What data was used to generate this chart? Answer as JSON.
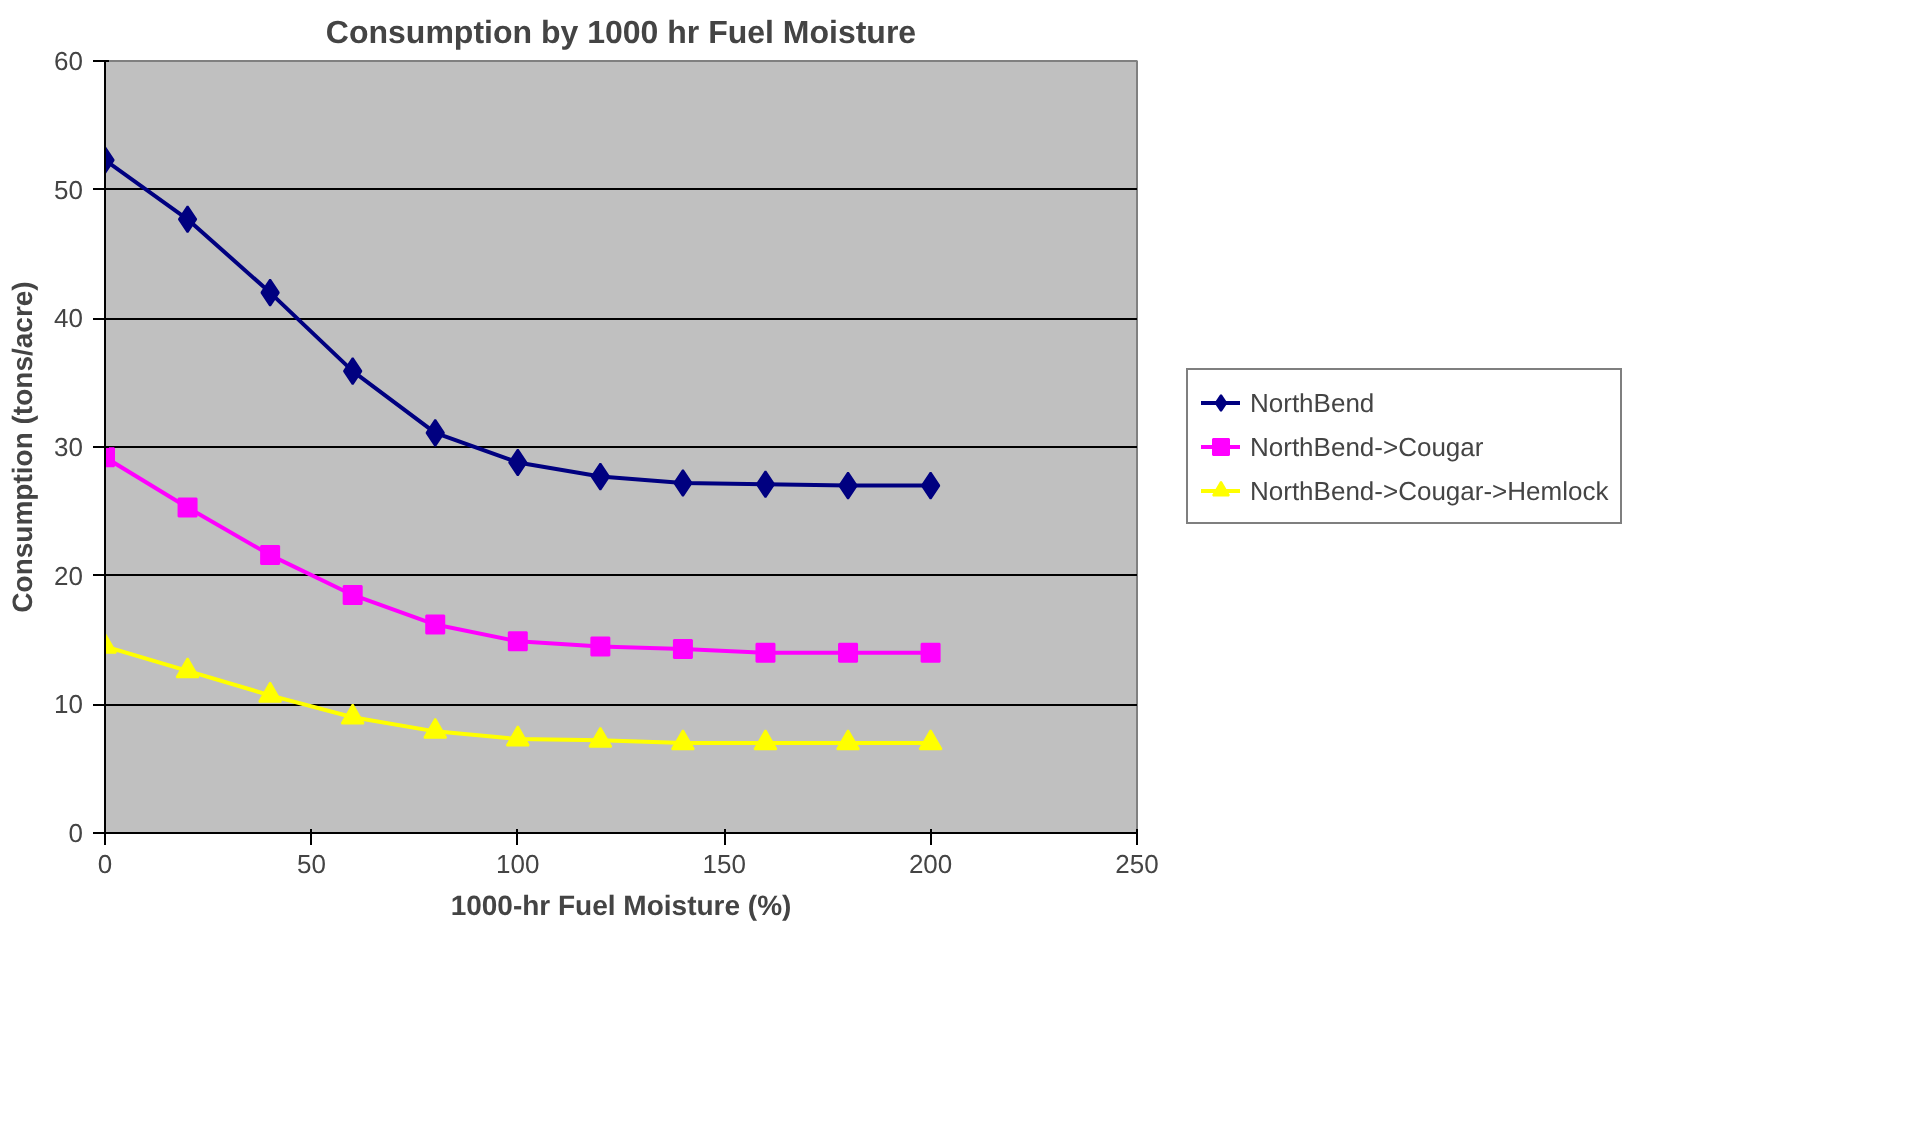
{
  "chart_data": {
    "type": "line",
    "title": "Consumption by 1000 hr Fuel Moisture",
    "xlabel": "1000-hr Fuel Moisture (%)",
    "ylabel": "Consumption (tons/acre)",
    "x": [
      0,
      20,
      40,
      60,
      80,
      100,
      120,
      140,
      160,
      180,
      200
    ],
    "series": [
      {
        "name": "NorthBend",
        "color": "#000080",
        "marker": "diamond",
        "values": [
          52.3,
          47.7,
          42,
          35.9,
          31.1,
          28.8,
          27.7,
          27.2,
          27.1,
          27,
          27
        ]
      },
      {
        "name": "NorthBend->Cougar",
        "color": "#ff00ff",
        "marker": "square",
        "values": [
          29.2,
          25.3,
          21.6,
          18.5,
          16.2,
          14.9,
          14.5,
          14.3,
          14,
          14,
          14
        ]
      },
      {
        "name": "NorthBend->Cougar->Hemlock",
        "color": "#ffff00",
        "marker": "triangle",
        "values": [
          14.5,
          12.6,
          10.7,
          9,
          7.9,
          7.3,
          7.2,
          7,
          7,
          7,
          7
        ]
      }
    ],
    "xlim": [
      0,
      250
    ],
    "xticks": [
      0,
      50,
      100,
      150,
      200,
      250
    ],
    "ylim": [
      0,
      60
    ],
    "yticks": [
      0,
      10,
      20,
      30,
      40,
      50,
      60
    ],
    "grid": "y",
    "legend": "right",
    "line_style": "solid"
  }
}
